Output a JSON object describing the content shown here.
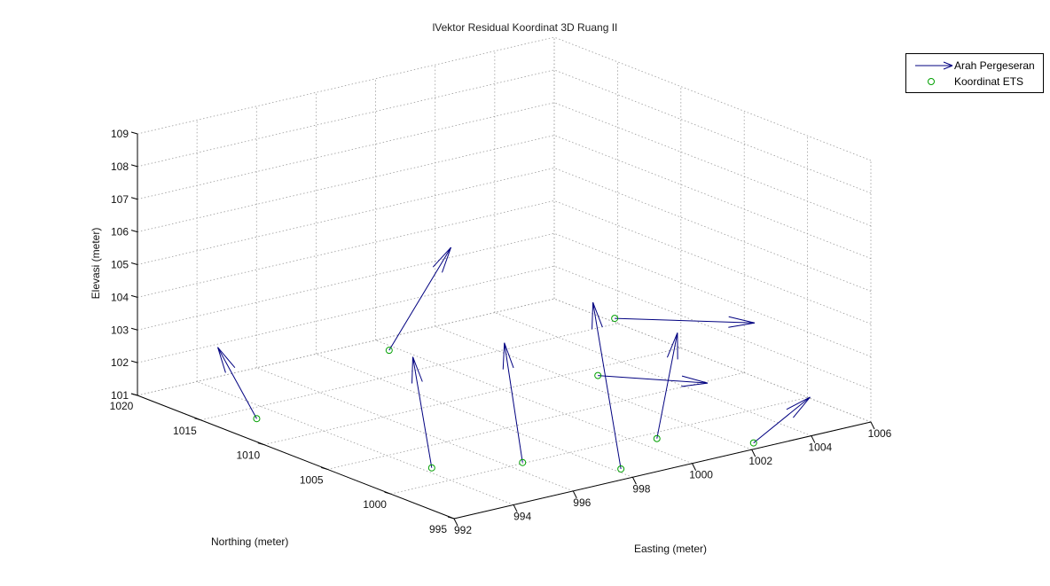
{
  "chart_data": {
    "type": "3d-quiver-scatter",
    "title": "lVektor Residual Koordinat 3D Ruang II",
    "xlabel": "Easting (meter)",
    "ylabel": "Northing (meter)",
    "zlabel": "Elevasi (meter)",
    "xlim": [
      992,
      1006
    ],
    "ylim": [
      995,
      1020
    ],
    "zlim": [
      101,
      109
    ],
    "xticks": [
      "992",
      "994",
      "996",
      "998",
      "1000",
      "1002",
      "1004",
      "1006"
    ],
    "yticks": [
      "995",
      "1000",
      "1005",
      "1010",
      "1015",
      "1020"
    ],
    "zticks": [
      "101",
      "102",
      "103",
      "104",
      "105",
      "106",
      "107",
      "108",
      "109"
    ],
    "grid": true,
    "legend_position": "top-right",
    "series": [
      {
        "name": "Arah Pergeseran",
        "kind": "arrows",
        "color": "#000080"
      },
      {
        "name": "Koordinat ETS",
        "kind": "markers",
        "color": "#00a000"
      }
    ],
    "points": [
      {
        "x": 992.9,
        "y": 1012.7,
        "z": 101.2,
        "dx": -0.5,
        "dy": 1.9,
        "dz": 2.0
      },
      {
        "x": 994.1,
        "y": 1001.7,
        "z": 101.1,
        "dx": 0.3,
        "dy": 2.2,
        "dz": 3.0
      },
      {
        "x": 996.2,
        "y": 1010.0,
        "z": 103.0,
        "dx": 2.8,
        "dy": 1.7,
        "dz": 2.3
      },
      {
        "x": 996.3,
        "y": 999.7,
        "z": 101.1,
        "dx": -0.1,
        "dy": 1.2,
        "dz": 3.5
      },
      {
        "x": 998.2,
        "y": 996.4,
        "z": 101.0,
        "dx": -0.6,
        "dy": 0.8,
        "dz": 5.1
      },
      {
        "x": 1002.5,
        "y": 1007.0,
        "z": 103.1,
        "dx": 2.7,
        "dy": -4.7,
        "dz": 0.0
      },
      {
        "x": 1001.0,
        "y": 1004.8,
        "z": 102.0,
        "dx": 1.9,
        "dy": -4.2,
        "dz": 0.0
      },
      {
        "x": 1000.6,
        "y": 999.2,
        "z": 101.0,
        "dx": 1.2,
        "dy": 1.2,
        "dz": 2.8
      },
      {
        "x": 1002.4,
        "y": 995.8,
        "z": 101.0,
        "dx": 1.9,
        "dy": 0.0,
        "dz": 1.0
      }
    ]
  }
}
